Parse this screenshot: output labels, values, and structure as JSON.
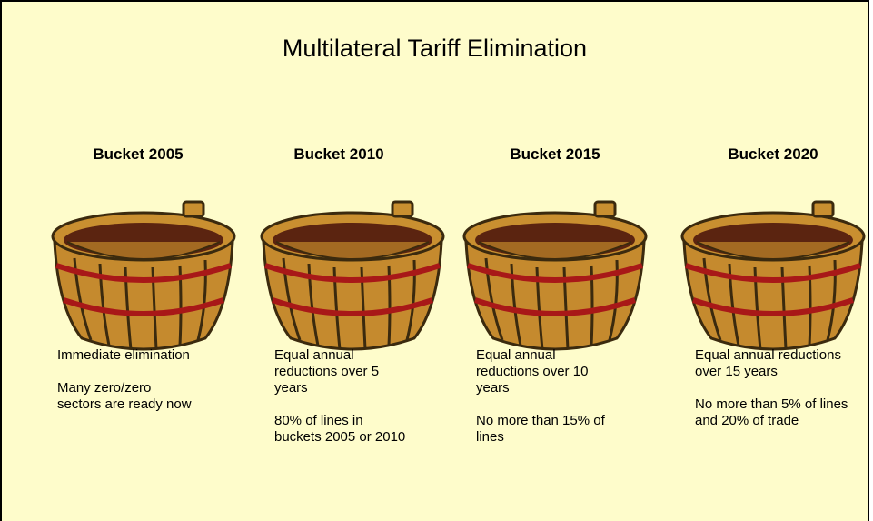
{
  "title": "Multilateral Tariff Elimination",
  "buckets": [
    {
      "heading": "Bucket 2005",
      "points": [
        "Immediate elimination",
        "Many zero/zero sectors are ready now"
      ]
    },
    {
      "heading": "Bucket 2010",
      "points": [
        "Equal annual reductions over 5 years",
        "80% of lines in buckets 2005 or 2010"
      ]
    },
    {
      "heading": "Bucket 2015",
      "points": [
        "Equal annual reductions over 10 years",
        "No more than 15% of lines"
      ]
    },
    {
      "heading": "Bucket 2020",
      "points": [
        "Equal annual reductions over 15 years",
        "No more than 5% of lines and 20% of trade"
      ]
    }
  ]
}
